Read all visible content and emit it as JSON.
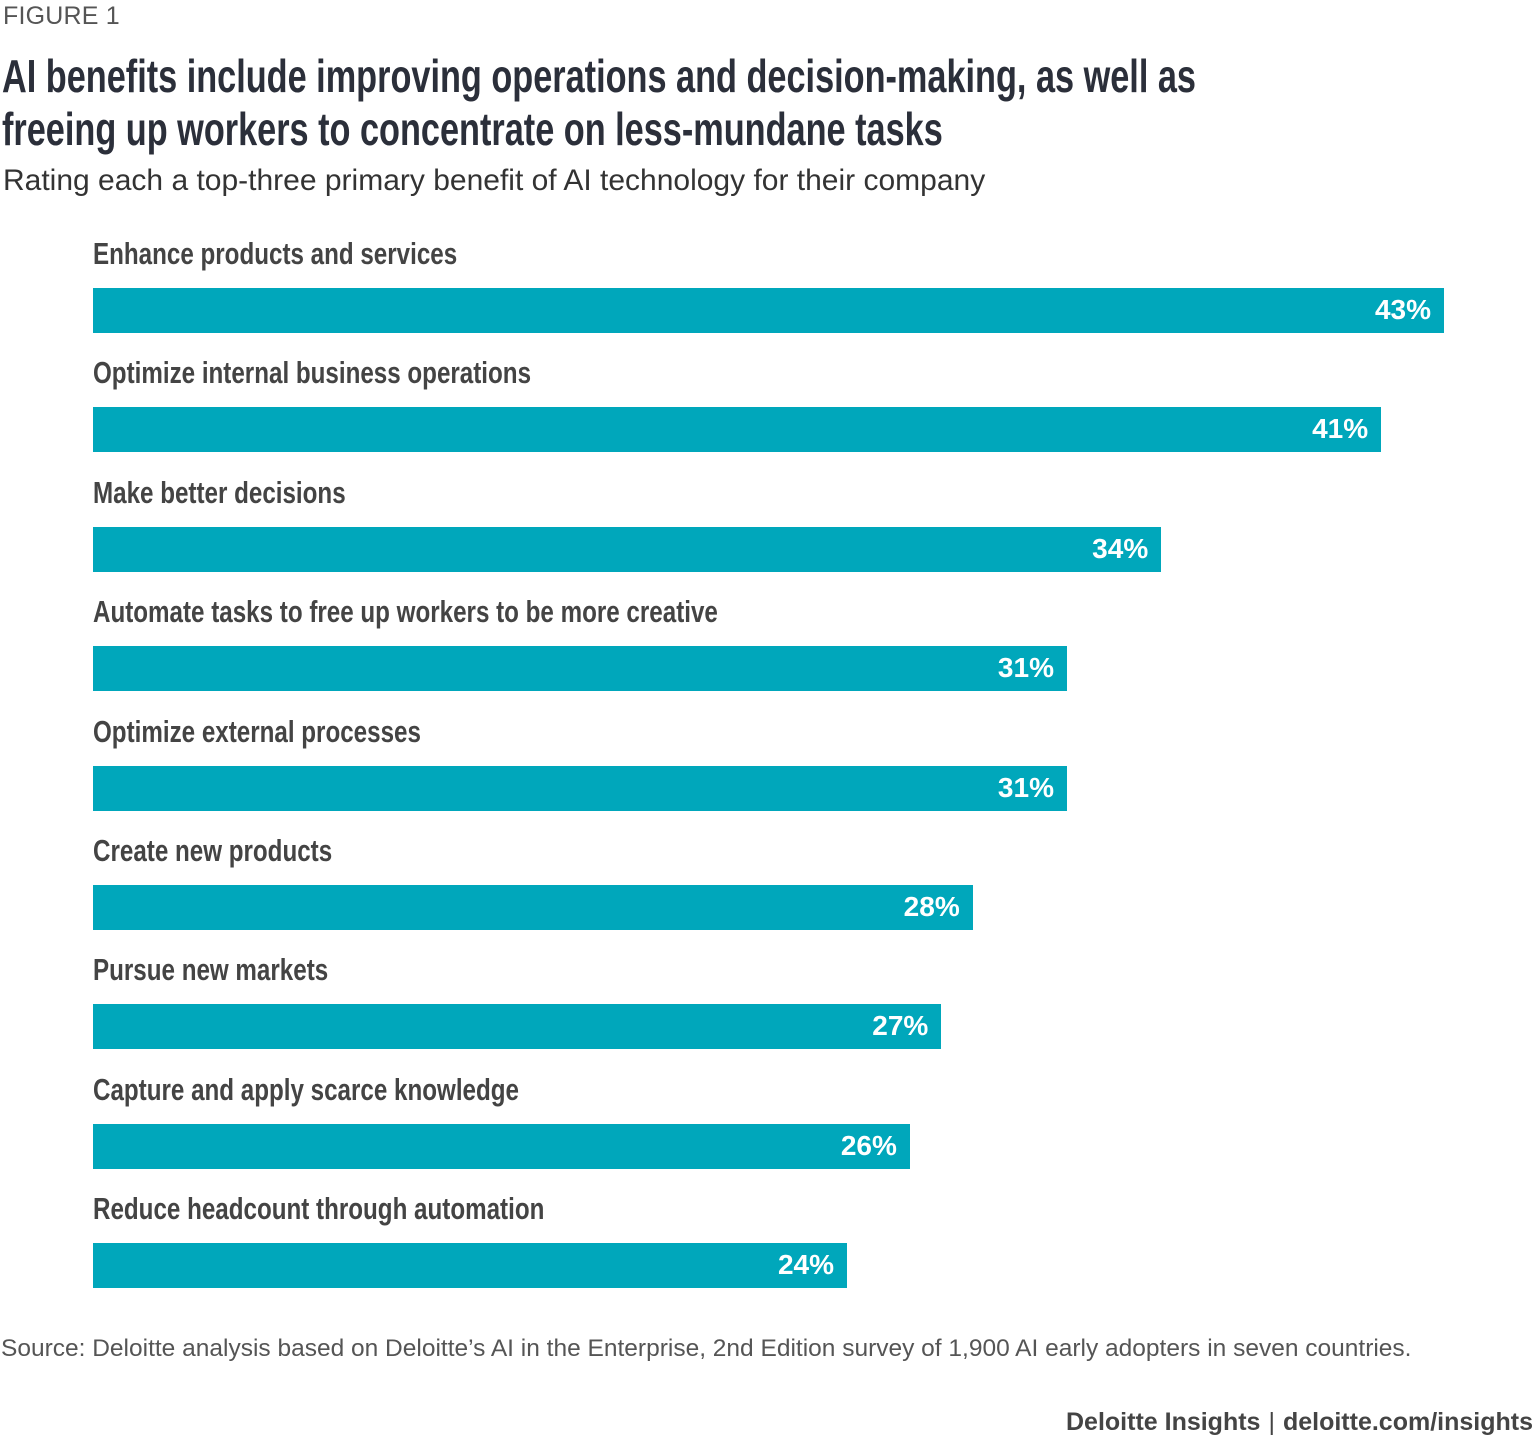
{
  "figure_label": "FIGURE 1",
  "chart_data": {
    "type": "bar",
    "orientation": "horizontal",
    "title": "AI benefits include improving operations and decision-making, as well as freeing up workers to concentrate on less-mundane tasks",
    "title_lines": [
      "AI benefits include improving operations and decision-making, as well as",
      "freeing up workers to concentrate on less-mundane tasks"
    ],
    "subtitle": "Rating each a top-three primary benefit of AI technology for their company",
    "categories": [
      "Enhance products and services",
      "Optimize internal business operations",
      "Make better decisions",
      "Automate tasks to free up workers to be more creative",
      "Optimize external processes",
      "Create new products",
      "Pursue new markets",
      "Capture and apply scarce knowledge",
      "Reduce headcount through automation"
    ],
    "values": [
      43,
      41,
      34,
      31,
      31,
      28,
      27,
      26,
      24
    ],
    "value_labels": [
      "43%",
      "41%",
      "34%",
      "31%",
      "31%",
      "28%",
      "27%",
      "26%",
      "24%"
    ],
    "unit": "%",
    "xlim": [
      0,
      43
    ],
    "grid": false,
    "bar_color": "#00A7BB"
  },
  "source": "Source: Deloitte analysis based on Deloitte’s AI in the Enterprise, 2nd Edition survey of 1,900 AI early adopters in seven countries.",
  "footer": {
    "brand": "Deloitte Insights",
    "separator": "|",
    "url": "deloitte.com/insights"
  }
}
